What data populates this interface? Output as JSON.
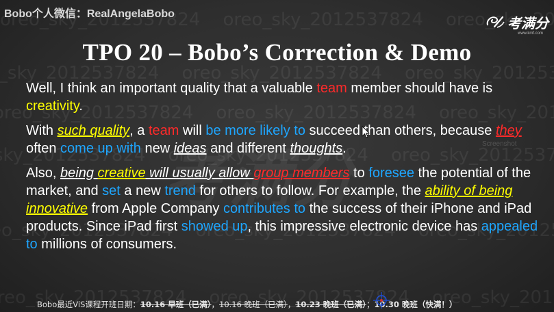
{
  "header": {
    "wechat_label": "Bobo个人微信：RealAngelaBobo",
    "logo_text": "考满分",
    "logo_url": "www.kmf.com"
  },
  "watermark": {
    "repeat_text": "oreo_sky_2012537824",
    "center_text": "考满分",
    "screenshot_text": "Screenshot"
  },
  "slide": {
    "title": "TPO 20 – Bobo’s Correction & Demo",
    "p1": {
      "t1": "Well, I think an important quality that a valuable ",
      "t2": "team",
      "t3": " member should have is ",
      "t4": "creativity",
      "t5": "."
    },
    "p2": {
      "t1": "With ",
      "t2": "such quality",
      "t3": ", a ",
      "t4": "team",
      "t5": " will ",
      "t6": "be more likely to",
      "t7": " succeed than others, because ",
      "t8": "they",
      "t9": " often ",
      "t10": "come up with",
      "t11": " new ",
      "t12": "ideas",
      "t13": " and different ",
      "t14": "thoughts",
      "t15": "."
    },
    "p3": {
      "t1": "Also, ",
      "t2": "being ",
      "t3": "creative",
      "t4": " will usually allow ",
      "t5": "group members",
      "t6": " to ",
      "t7": "foresee",
      "t8": " the potential of the market, and ",
      "t9": "set",
      "t10": " a new ",
      "t11": "trend",
      "t12": " for others to follow. For example, the ",
      "t13": "ability of being innovative",
      "t14": " from Apple Company ",
      "t15": "contributes to",
      "t16": " the success of their iPhone and iPad products. Since iPad first ",
      "t17": "showed up",
      "t18": ", this impressive electronic device has ",
      "t19": "appealed to",
      "t20": " millions of consumers."
    }
  },
  "footer": {
    "prefix": "Bobo最近ViS课程开班日期：",
    "class1": "10.16 早班（已满）",
    "sep1": "，",
    "class2": "10.16 晚班（已满）",
    "sep2": "，",
    "class3": "10.23 晚班（已满）",
    "sep3": "；",
    "class4": "10.30 晚班（快满！）"
  },
  "colors": {
    "red": "#ff2a2a",
    "yellow": "#ffff00",
    "blue": "#1ea6ff",
    "text": "#ffffff",
    "background": "#2e2e2e"
  }
}
